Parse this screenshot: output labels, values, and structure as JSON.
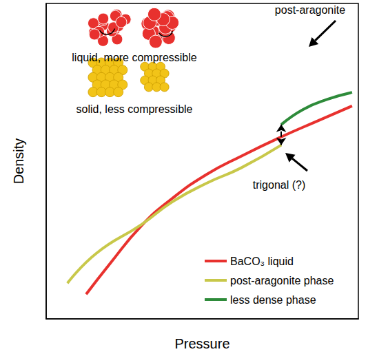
{
  "chart_data": {
    "type": "line",
    "x_label": "Pressure",
    "y_label": "Density",
    "xlim": [
      0,
      10
    ],
    "ylim": [
      0,
      10
    ],
    "tick_labels": false,
    "grid": false,
    "legend": "lower right",
    "series": [
      {
        "name": "BaCO₃ liquid",
        "color": "#e8312e",
        "x": [
          1.28,
          2.05,
          3.05,
          4.04,
          5.14,
          6.25,
          7.53,
          8.68,
          9.8
        ],
        "values": [
          0.78,
          1.76,
          2.95,
          3.82,
          4.58,
          5.16,
          5.77,
          6.27,
          6.75
        ]
      },
      {
        "name": "post-aragonite phase",
        "color": "#c8c84a",
        "x": [
          0.68,
          1.61,
          3.05,
          4.04,
          5.14,
          6.25,
          7.53
        ],
        "values": [
          1.13,
          2.08,
          2.99,
          3.71,
          4.3,
          4.79,
          5.51
        ]
      },
      {
        "name": "less dense phase",
        "color": "#2e8b3a",
        "x": [
          7.53,
          8.23,
          9.01,
          9.8
        ],
        "values": [
          6.16,
          6.64,
          6.96,
          7.18
        ]
      }
    ],
    "annotations": [
      "liquid, more compressible",
      "solid, less compressible",
      "post-aragonite",
      "trigonal (?)"
    ]
  }
}
